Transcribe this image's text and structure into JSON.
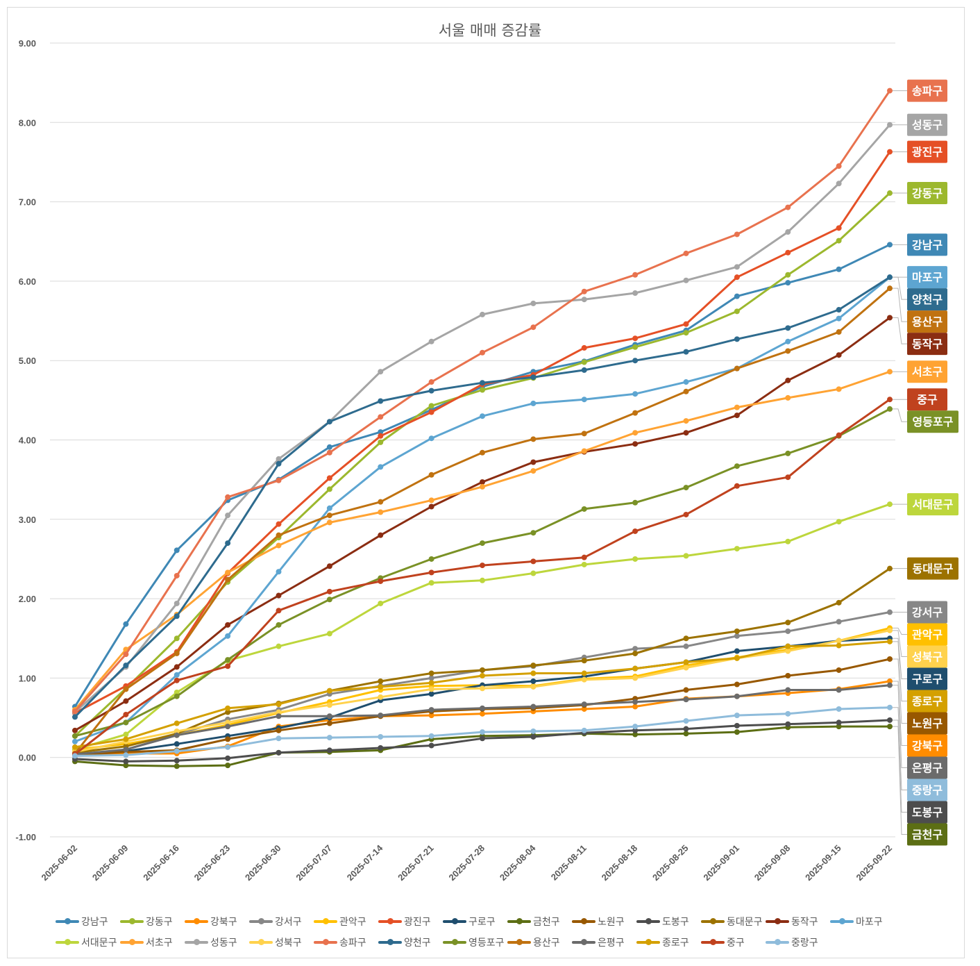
{
  "chart_data": {
    "type": "line",
    "title": "서울 매매 증감률",
    "xlabel": "",
    "ylabel": "",
    "ylim": [
      -1.0,
      9.0
    ],
    "yticks": [
      "9.00",
      "8.00",
      "7.00",
      "6.00",
      "5.00",
      "4.00",
      "3.00",
      "2.00",
      "1.00",
      "0.00",
      "-1.00"
    ],
    "ytick_values": [
      9,
      8,
      7,
      6,
      5,
      4,
      3,
      2,
      1,
      0,
      -1
    ],
    "grid": true,
    "legend_position": "bottom",
    "x": [
      "2025-06-02",
      "2025-06-09",
      "2025-06-16",
      "2025-06-23",
      "2025-06-30",
      "2025-07-07",
      "2025-07-14",
      "2025-07-21",
      "2025-07-28",
      "2025-08-04",
      "2025-08-11",
      "2025-08-18",
      "2025-08-25",
      "2025-09-01",
      "2025-09-08",
      "2025-09-15",
      "2025-09-22"
    ],
    "series": [
      {
        "name": "강남구",
        "color": "#3f88b5",
        "values": [
          0.64,
          1.68,
          2.61,
          3.24,
          3.5,
          3.91,
          4.1,
          4.38,
          4.67,
          4.86,
          4.99,
          5.2,
          5.38,
          5.81,
          5.98,
          6.15,
          6.46
        ]
      },
      {
        "name": "강동구",
        "color": "#9cb82e",
        "values": [
          0.27,
          0.87,
          1.5,
          2.21,
          2.77,
          3.38,
          3.97,
          4.43,
          4.63,
          4.78,
          4.98,
          5.17,
          5.35,
          5.62,
          6.08,
          6.51,
          7.11
        ]
      },
      {
        "name": "강북구",
        "color": "#ff8c00",
        "values": [
          0.05,
          0.05,
          0.05,
          0.14,
          0.39,
          0.47,
          0.52,
          0.53,
          0.55,
          0.58,
          0.61,
          0.64,
          0.74,
          0.77,
          0.81,
          0.86,
          0.96
        ]
      },
      {
        "name": "강서구",
        "color": "#878787",
        "values": [
          0.03,
          0.1,
          0.29,
          0.48,
          0.6,
          0.8,
          0.9,
          1.0,
          1.1,
          1.15,
          1.26,
          1.37,
          1.4,
          1.53,
          1.59,
          1.71,
          1.83
        ]
      },
      {
        "name": "관악구",
        "color": "#ffc000",
        "values": [
          0.1,
          0.17,
          0.28,
          0.41,
          0.56,
          0.7,
          0.85,
          0.9,
          0.91,
          0.9,
          0.99,
          1.02,
          1.16,
          1.26,
          1.36,
          1.47,
          1.63
        ]
      },
      {
        "name": "광진구",
        "color": "#e55026",
        "values": [
          0.56,
          0.9,
          1.33,
          2.32,
          2.94,
          3.52,
          4.05,
          4.35,
          4.7,
          4.82,
          5.16,
          5.28,
          5.46,
          6.05,
          6.36,
          6.67,
          7.63
        ]
      },
      {
        "name": "구로구",
        "color": "#1f4e6e",
        "values": [
          0.03,
          0.08,
          0.17,
          0.27,
          0.37,
          0.5,
          0.72,
          0.8,
          0.91,
          0.96,
          1.02,
          1.12,
          1.2,
          1.34,
          1.4,
          1.47,
          1.5
        ]
      },
      {
        "name": "금천구",
        "color": "#5c6e14",
        "values": [
          -0.05,
          -0.1,
          -0.11,
          -0.1,
          0.06,
          0.07,
          0.09,
          0.23,
          0.27,
          0.28,
          0.3,
          0.29,
          0.3,
          0.32,
          0.38,
          0.39,
          0.39
        ]
      },
      {
        "name": "노원구",
        "color": "#985800",
        "values": [
          0.03,
          0.07,
          0.09,
          0.23,
          0.34,
          0.43,
          0.52,
          0.58,
          0.61,
          0.62,
          0.66,
          0.74,
          0.85,
          0.92,
          1.03,
          1.1,
          1.24
        ]
      },
      {
        "name": "도봉구",
        "color": "#4d4d4d",
        "values": [
          -0.02,
          -0.05,
          -0.04,
          -0.01,
          0.06,
          0.09,
          0.12,
          0.15,
          0.24,
          0.26,
          0.31,
          0.34,
          0.36,
          0.4,
          0.42,
          0.44,
          0.47
        ]
      },
      {
        "name": "동대문구",
        "color": "#9c7200",
        "values": [
          0.06,
          0.14,
          0.3,
          0.57,
          0.68,
          0.84,
          0.96,
          1.06,
          1.1,
          1.16,
          1.22,
          1.31,
          1.5,
          1.59,
          1.7,
          1.95,
          2.38
        ]
      },
      {
        "name": "동작구",
        "color": "#8b2d12",
        "values": [
          0.34,
          0.71,
          1.14,
          1.67,
          2.04,
          2.41,
          2.8,
          3.16,
          3.47,
          3.72,
          3.85,
          3.95,
          4.09,
          4.31,
          4.75,
          5.07,
          5.54
        ]
      },
      {
        "name": "마포구",
        "color": "#5da5d1",
        "values": [
          0.2,
          0.44,
          1.04,
          1.53,
          2.34,
          3.14,
          3.66,
          4.02,
          4.3,
          4.46,
          4.51,
          4.58,
          4.73,
          4.9,
          5.24,
          5.53,
          6.05
        ]
      },
      {
        "name": "서대문구",
        "color": "#bdd63c",
        "values": [
          0.1,
          0.29,
          0.82,
          1.22,
          1.4,
          1.56,
          1.94,
          2.2,
          2.23,
          2.32,
          2.43,
          2.5,
          2.54,
          2.63,
          2.72,
          2.97,
          3.19
        ]
      },
      {
        "name": "서초구",
        "color": "#ffa333",
        "values": [
          0.6,
          1.36,
          1.8,
          2.33,
          2.67,
          2.96,
          3.09,
          3.24,
          3.41,
          3.61,
          3.86,
          4.09,
          4.24,
          4.41,
          4.53,
          4.64,
          4.86
        ]
      },
      {
        "name": "성동구",
        "color": "#a5a5a5",
        "values": [
          0.57,
          1.14,
          1.94,
          3.05,
          3.76,
          4.23,
          4.86,
          5.24,
          5.58,
          5.72,
          5.77,
          5.85,
          6.01,
          6.18,
          6.62,
          7.23,
          7.97
        ]
      },
      {
        "name": "성북구",
        "color": "#ffd24d",
        "values": [
          0.07,
          0.2,
          0.33,
          0.44,
          0.57,
          0.66,
          0.76,
          0.86,
          0.87,
          0.89,
          0.98,
          1.0,
          1.13,
          1.25,
          1.34,
          1.47,
          1.6
        ]
      },
      {
        "name": "송파구",
        "color": "#e8724e",
        "values": [
          0.58,
          1.3,
          2.29,
          3.28,
          3.49,
          3.84,
          4.29,
          4.73,
          5.1,
          5.42,
          5.87,
          6.08,
          6.35,
          6.59,
          6.93,
          7.45,
          8.4
        ]
      },
      {
        "name": "양천구",
        "color": "#2e6b8e",
        "values": [
          0.51,
          1.16,
          1.78,
          2.7,
          3.7,
          4.23,
          4.49,
          4.62,
          4.72,
          4.79,
          4.88,
          5.0,
          5.11,
          5.27,
          5.41,
          5.64,
          6.05
        ]
      },
      {
        "name": "영등포구",
        "color": "#7a9126",
        "values": [
          0.27,
          0.44,
          0.77,
          1.23,
          1.67,
          1.99,
          2.26,
          2.5,
          2.7,
          2.83,
          3.13,
          3.21,
          3.4,
          3.67,
          3.83,
          4.05,
          4.39
        ]
      },
      {
        "name": "용산구",
        "color": "#c07210",
        "values": [
          0.05,
          0.86,
          1.31,
          2.24,
          2.8,
          3.05,
          3.22,
          3.56,
          3.84,
          4.01,
          4.08,
          4.34,
          4.61,
          4.9,
          5.12,
          5.36,
          5.91
        ]
      },
      {
        "name": "은평구",
        "color": "#6b6b6b",
        "values": [
          0.04,
          0.1,
          0.28,
          0.39,
          0.52,
          0.52,
          0.53,
          0.6,
          0.62,
          0.64,
          0.67,
          0.7,
          0.73,
          0.77,
          0.85,
          0.85,
          0.91
        ]
      },
      {
        "name": "종로구",
        "color": "#d4a000",
        "values": [
          0.13,
          0.23,
          0.43,
          0.62,
          0.67,
          0.84,
          0.89,
          0.94,
          1.03,
          1.06,
          1.06,
          1.12,
          1.2,
          1.25,
          1.4,
          1.41,
          1.46
        ]
      },
      {
        "name": "중구",
        "color": "#c0421e",
        "values": [
          0.04,
          0.54,
          0.97,
          1.15,
          1.85,
          2.09,
          2.22,
          2.33,
          2.42,
          2.47,
          2.52,
          2.85,
          3.06,
          3.42,
          3.53,
          4.06,
          4.51
        ]
      },
      {
        "name": "중랑구",
        "color": "#8fbcdb",
        "values": [
          0.02,
          0.03,
          0.08,
          0.13,
          0.24,
          0.25,
          0.26,
          0.27,
          0.32,
          0.33,
          0.34,
          0.39,
          0.46,
          0.53,
          0.55,
          0.61,
          0.63
        ]
      }
    ],
    "end_labels_order": [
      "송파구",
      "성동구",
      "광진구",
      "강동구",
      "강남구",
      "마포구",
      "양천구",
      "용산구",
      "동작구",
      "서초구",
      "중구",
      "영등포구",
      "서대문구",
      "동대문구",
      "강서구",
      "관악구",
      "성북구",
      "구로구",
      "종로구",
      "노원구",
      "강북구",
      "은평구",
      "중랑구",
      "도봉구",
      "금천구"
    ]
  }
}
